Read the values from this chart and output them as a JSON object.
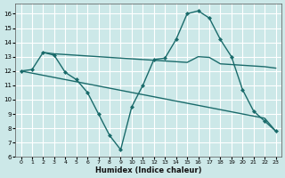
{
  "xlabel": "Humidex (Indice chaleur)",
  "xlim": [
    -0.5,
    23.5
  ],
  "ylim": [
    6,
    16.7
  ],
  "yticks": [
    6,
    7,
    8,
    9,
    10,
    11,
    12,
    13,
    14,
    15,
    16
  ],
  "xticks": [
    0,
    1,
    2,
    3,
    4,
    5,
    6,
    7,
    8,
    9,
    10,
    11,
    12,
    13,
    14,
    15,
    16,
    17,
    18,
    19,
    20,
    21,
    22,
    23
  ],
  "background_color": "#cce8e8",
  "grid_color": "#ffffff",
  "line_color": "#1a6b6b",
  "series": [
    {
      "x": [
        0,
        1,
        2,
        3,
        4,
        5,
        6,
        7,
        8,
        9,
        10,
        11,
        12,
        13,
        14,
        15,
        16,
        17,
        18,
        19,
        20,
        21,
        22,
        23
      ],
      "y": [
        12.0,
        12.1,
        13.3,
        13.1,
        11.9,
        11.4,
        10.5,
        9.0,
        7.5,
        6.5,
        9.5,
        11.0,
        12.8,
        12.9,
        14.2,
        16.0,
        16.2,
        15.7,
        14.2,
        13.0,
        10.7,
        9.2,
        8.5,
        7.8
      ],
      "has_marker": true,
      "marker": "D",
      "markersize": 2.0,
      "linewidth": 1.0
    },
    {
      "x": [
        2,
        3,
        4,
        5,
        6,
        7,
        8,
        9,
        10,
        11,
        12,
        13,
        14,
        15,
        16,
        17,
        18,
        19,
        20,
        21,
        22,
        23
      ],
      "y": [
        13.3,
        13.2,
        13.15,
        13.1,
        13.05,
        13.0,
        12.95,
        12.9,
        12.85,
        12.8,
        12.75,
        12.7,
        12.65,
        12.6,
        13.0,
        12.95,
        12.5,
        12.45,
        12.4,
        12.35,
        12.3,
        12.2
      ],
      "has_marker": false,
      "marker": null,
      "markersize": 0,
      "linewidth": 1.0
    },
    {
      "x": [
        0,
        1,
        2,
        3,
        4,
        5,
        6,
        7,
        8,
        9,
        10,
        11,
        12,
        13,
        14,
        15,
        16,
        17,
        18,
        19,
        20,
        21,
        22,
        23
      ],
      "y": [
        12.0,
        11.85,
        11.7,
        11.55,
        11.4,
        11.25,
        11.1,
        10.95,
        10.8,
        10.65,
        10.5,
        10.35,
        10.2,
        10.05,
        9.9,
        9.75,
        9.6,
        9.45,
        9.3,
        9.15,
        9.0,
        8.85,
        8.7,
        7.8
      ],
      "has_marker": false,
      "marker": null,
      "markersize": 0,
      "linewidth": 1.0
    }
  ]
}
